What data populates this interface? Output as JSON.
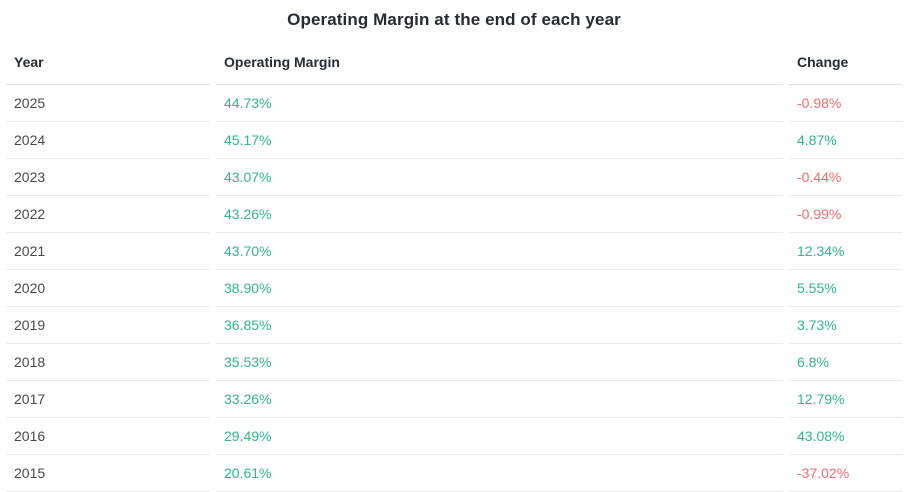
{
  "title": "Operating Margin at the end of each year",
  "table": {
    "columns": [
      {
        "label": "Year"
      },
      {
        "label": "Operating Margin"
      },
      {
        "label": "Change"
      }
    ],
    "rows": [
      {
        "year": "2025",
        "margin": "44.73%",
        "change": "-0.98%"
      },
      {
        "year": "2024",
        "margin": "45.17%",
        "change": "4.87%"
      },
      {
        "year": "2023",
        "margin": "43.07%",
        "change": "-0.44%"
      },
      {
        "year": "2022",
        "margin": "43.26%",
        "change": "-0.99%"
      },
      {
        "year": "2021",
        "margin": "43.70%",
        "change": "12.34%"
      },
      {
        "year": "2020",
        "margin": "38.90%",
        "change": "5.55%"
      },
      {
        "year": "2019",
        "margin": "36.85%",
        "change": "3.73%"
      },
      {
        "year": "2018",
        "margin": "35.53%",
        "change": "6.8%"
      },
      {
        "year": "2017",
        "margin": "33.26%",
        "change": "12.79%"
      },
      {
        "year": "2016",
        "margin": "29.49%",
        "change": "43.08%"
      },
      {
        "year": "2015",
        "margin": "20.61%",
        "change": "-37.02%"
      }
    ]
  },
  "colors": {
    "positive": "#2eb986",
    "negative": "#f56b6b"
  },
  "chart_data": {
    "type": "table",
    "title": "Operating Margin at the end of each year",
    "columns": [
      "Year",
      "Operating Margin",
      "Change"
    ],
    "rows": [
      [
        "2025",
        "44.73%",
        "-0.98%"
      ],
      [
        "2024",
        "45.17%",
        "4.87%"
      ],
      [
        "2023",
        "43.07%",
        "-0.44%"
      ],
      [
        "2022",
        "43.26%",
        "-0.99%"
      ],
      [
        "2021",
        "43.70%",
        "12.34%"
      ],
      [
        "2020",
        "38.90%",
        "5.55%"
      ],
      [
        "2019",
        "36.85%",
        "3.73%"
      ],
      [
        "2018",
        "35.53%",
        "6.8%"
      ],
      [
        "2017",
        "33.26%",
        "12.79%"
      ],
      [
        "2016",
        "29.49%",
        "43.08%"
      ],
      [
        "2015",
        "20.61%",
        "-37.02%"
      ]
    ],
    "series": [
      {
        "name": "Operating Margin (%)",
        "x": [
          2025,
          2024,
          2023,
          2022,
          2021,
          2020,
          2019,
          2018,
          2017,
          2016,
          2015
        ],
        "values": [
          44.73,
          45.17,
          43.07,
          43.26,
          43.7,
          38.9,
          36.85,
          35.53,
          33.26,
          29.49,
          20.61
        ]
      },
      {
        "name": "Change (%)",
        "x": [
          2025,
          2024,
          2023,
          2022,
          2021,
          2020,
          2019,
          2018,
          2017,
          2016,
          2015
        ],
        "values": [
          -0.98,
          4.87,
          -0.44,
          -0.99,
          12.34,
          5.55,
          3.73,
          6.8,
          12.79,
          43.08,
          -37.02
        ]
      }
    ]
  }
}
